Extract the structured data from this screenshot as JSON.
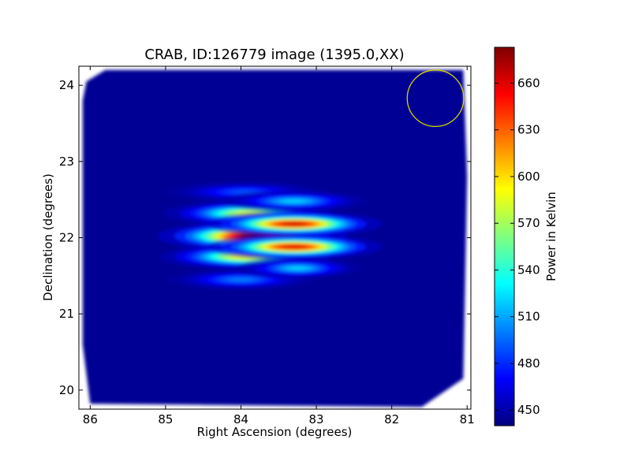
{
  "chart_data": {
    "type": "heatmap",
    "title": "CRAB, ID:126779 image (1395.0,XX)",
    "xlabel": "Right Ascension (degrees)",
    "ylabel": "Declination (degrees)",
    "xlim": [
      86.15,
      80.95
    ],
    "ylim": [
      19.75,
      24.25
    ],
    "x_ticks": [
      86,
      85,
      84,
      83,
      82,
      81
    ],
    "y_ticks": [
      20,
      21,
      22,
      23,
      24
    ],
    "colorbar": {
      "label": "Power in Kelvin",
      "range": [
        440,
        683
      ],
      "ticks": [
        450,
        480,
        510,
        540,
        570,
        600,
        630,
        660
      ],
      "colormap": "jet"
    },
    "background_value": 445,
    "field_corners": [
      [
        86.05,
        24.05
      ],
      [
        85.8,
        24.2
      ],
      [
        81.05,
        24.2
      ],
      [
        81.0,
        22.8
      ],
      [
        81.05,
        20.15
      ],
      [
        81.6,
        19.78
      ],
      [
        86.0,
        19.82
      ],
      [
        86.1,
        20.6
      ],
      [
        86.1,
        23.8
      ]
    ],
    "beam_circle": {
      "center": [
        81.42,
        23.83
      ],
      "radius_deg": 0.37,
      "color": "#d4d400"
    },
    "sources": [
      {
        "ra": 83.95,
        "dec": 22.6,
        "peak": 490,
        "sigma_ra": 0.38,
        "sigma_dec": 0.05
      },
      {
        "ra": 83.9,
        "dec": 22.32,
        "peak": 585,
        "sigma_ra": 0.4,
        "sigma_dec": 0.06
      },
      {
        "ra": 83.85,
        "dec": 22.02,
        "peak": 683,
        "sigma_ra": 0.45,
        "sigma_dec": 0.07
      },
      {
        "ra": 83.95,
        "dec": 21.75,
        "peak": 595,
        "sigma_ra": 0.4,
        "sigma_dec": 0.06
      },
      {
        "ra": 84.0,
        "dec": 21.45,
        "peak": 500,
        "sigma_ra": 0.35,
        "sigma_dec": 0.05
      },
      {
        "ra": 83.3,
        "dec": 22.48,
        "peak": 520,
        "sigma_ra": 0.35,
        "sigma_dec": 0.05
      },
      {
        "ra": 83.3,
        "dec": 22.18,
        "peak": 665,
        "sigma_ra": 0.42,
        "sigma_dec": 0.06
      },
      {
        "ra": 83.3,
        "dec": 21.88,
        "peak": 660,
        "sigma_ra": 0.42,
        "sigma_dec": 0.06
      },
      {
        "ra": 83.25,
        "dec": 21.6,
        "peak": 520,
        "sigma_ra": 0.3,
        "sigma_dec": 0.05
      }
    ]
  }
}
